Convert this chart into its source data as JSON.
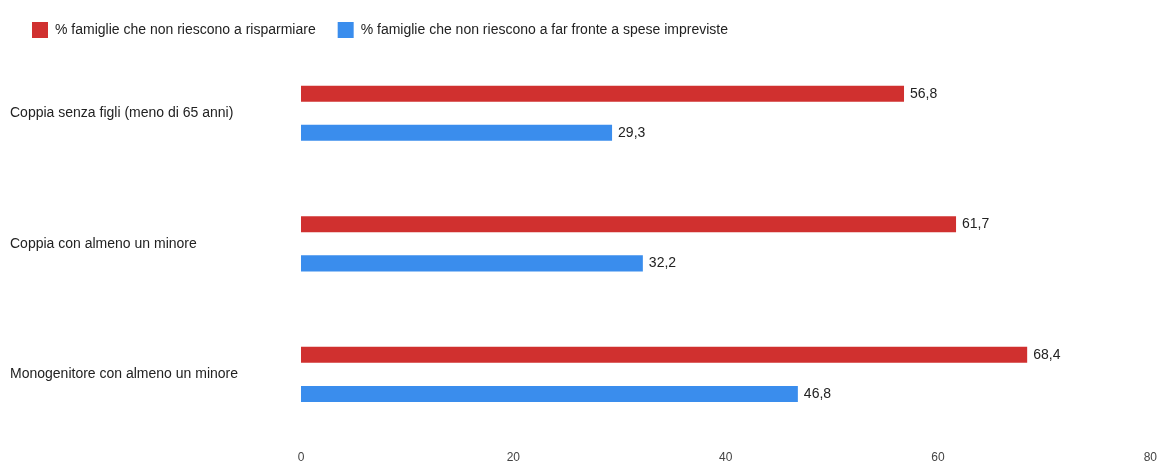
{
  "chart_data": {
    "type": "bar",
    "orientation": "horizontal",
    "categories": [
      "Coppia senza figli (meno di 65 anni)",
      "Coppia con almeno un minore",
      "Monogenitore con almeno un minore"
    ],
    "series": [
      {
        "name": "% famiglie che non riescono a risparmiare",
        "color": "#d0302f",
        "values": [
          56.8,
          61.7,
          68.4
        ],
        "value_labels": [
          "56,8",
          "61,7",
          "68,4"
        ]
      },
      {
        "name": "% famiglie che non riescono a far fronte a spese impreviste",
        "color": "#3a8ded",
        "values": [
          29.3,
          32.2,
          46.8
        ],
        "value_labels": [
          "29,3",
          "32,2",
          "46,8"
        ]
      }
    ],
    "xlim": [
      0,
      80
    ],
    "xticks": [
      0,
      20,
      40,
      60,
      80
    ],
    "grid": false,
    "legend": "top left"
  }
}
